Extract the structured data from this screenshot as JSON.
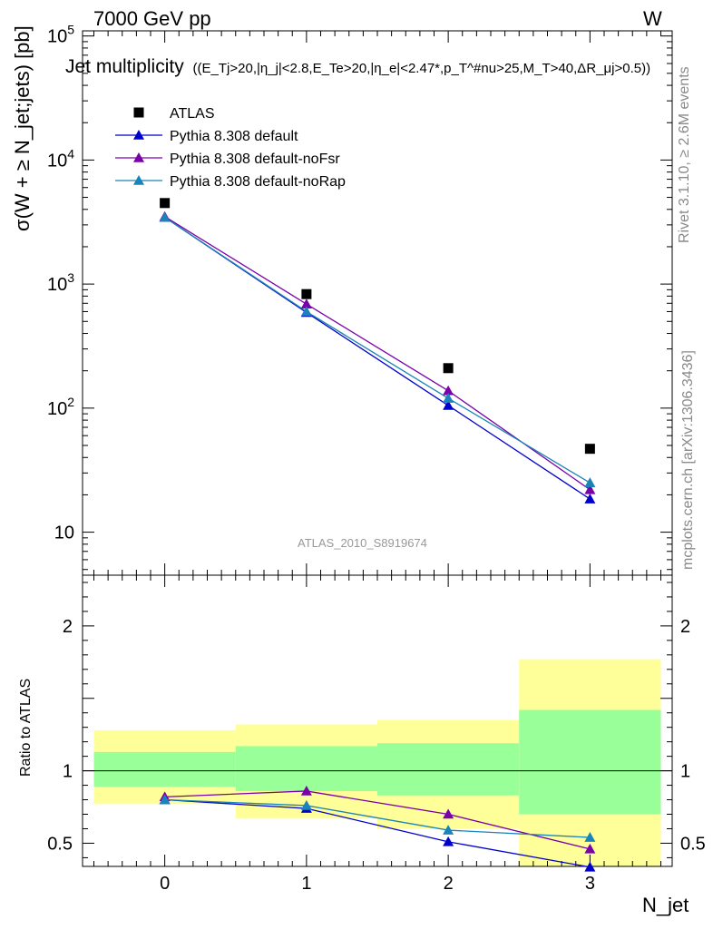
{
  "header": {
    "energy": "7000 GeV pp",
    "process": "W"
  },
  "side_labels": {
    "rivet": "Rivet 3.1.10, ≥ 2.6M events",
    "mcplots": "mcplots.cern.ch [arXiv:1306.3436]"
  },
  "chart_data": [
    {
      "type": "scatter",
      "panel": "main",
      "title": "Jet multiplicity",
      "subtitle": "((E_Tj>20,|η_j|<2.8,E_Te>20,|η_e|<2.47*,p_T^#nu>25,M_T>40,ΔR_μj>0.5))",
      "ylabel": "σ(W + ≥ N_jet;jets) [pb]",
      "xlabel": "N_jet",
      "yscale": "log",
      "ylim": [
        4.5,
        110000
      ],
      "xlim": [
        -0.58,
        3.58
      ],
      "y_ticks": [
        "10",
        "10^2",
        "10^3",
        "10^4",
        "10^5"
      ],
      "x_ticks": [
        "0",
        "1",
        "2",
        "3"
      ],
      "analysis_label": "ATLAS_2010_S8919674",
      "legend_position": "top-left",
      "x": [
        0,
        1,
        2,
        3
      ],
      "series": [
        {
          "name": "ATLAS",
          "color": "#000000",
          "marker": "square",
          "values": [
            4500,
            830,
            210,
            47
          ]
        },
        {
          "name": "Pythia 8.308 default",
          "color": "#0000cc",
          "marker": "triangle",
          "values": [
            3450,
            590,
            105,
            18.5
          ]
        },
        {
          "name": "Pythia 8.308 default-noFsr",
          "color": "#7a00aa",
          "marker": "triangle",
          "values": [
            3500,
            690,
            138,
            22
          ]
        },
        {
          "name": "Pythia 8.308 default-noRap",
          "color": "#1a84b8",
          "marker": "triangle",
          "values": [
            3450,
            600,
            120,
            25
          ]
        }
      ]
    },
    {
      "type": "line",
      "panel": "ratio",
      "ylabel": "Ratio to ATLAS",
      "ylim": [
        0.34,
        2.35
      ],
      "y_ticks": [
        "0.5",
        "1",
        "2"
      ],
      "x_ticks": [
        "0",
        "1",
        "2",
        "3"
      ],
      "x": [
        0,
        1,
        2,
        3
      ],
      "reference": 1,
      "bands": [
        {
          "x_low": -0.5,
          "x_high": 0.5,
          "outer": [
            0.77,
            1.28
          ],
          "inner": [
            0.89,
            1.13
          ]
        },
        {
          "x_low": 0.5,
          "x_high": 1.5,
          "outer": [
            0.67,
            1.32
          ],
          "inner": [
            0.86,
            1.17
          ]
        },
        {
          "x_low": 1.5,
          "x_high": 2.5,
          "outer": [
            0.6,
            1.35
          ],
          "inner": [
            0.83,
            1.19
          ]
        },
        {
          "x_low": 2.5,
          "x_high": 3.5,
          "outer": [
            0.34,
            1.77
          ],
          "inner": [
            0.7,
            1.42
          ]
        }
      ],
      "series": [
        {
          "name": "Pythia 8.308 default",
          "color": "#0000cc",
          "values": [
            0.8,
            0.74,
            0.51,
            0.335
          ]
        },
        {
          "name": "Pythia 8.308 default-noFsr",
          "color": "#7a00aa",
          "values": [
            0.82,
            0.86,
            0.7,
            0.46
          ]
        },
        {
          "name": "Pythia 8.308 default-noRap",
          "color": "#1a84b8",
          "values": [
            0.8,
            0.76,
            0.59,
            0.54
          ]
        }
      ]
    }
  ],
  "colors": {
    "band_outer": "#ffff99",
    "band_inner": "#99ff99",
    "analysis_label": "#999999",
    "side_label": "#8a8a8a"
  }
}
